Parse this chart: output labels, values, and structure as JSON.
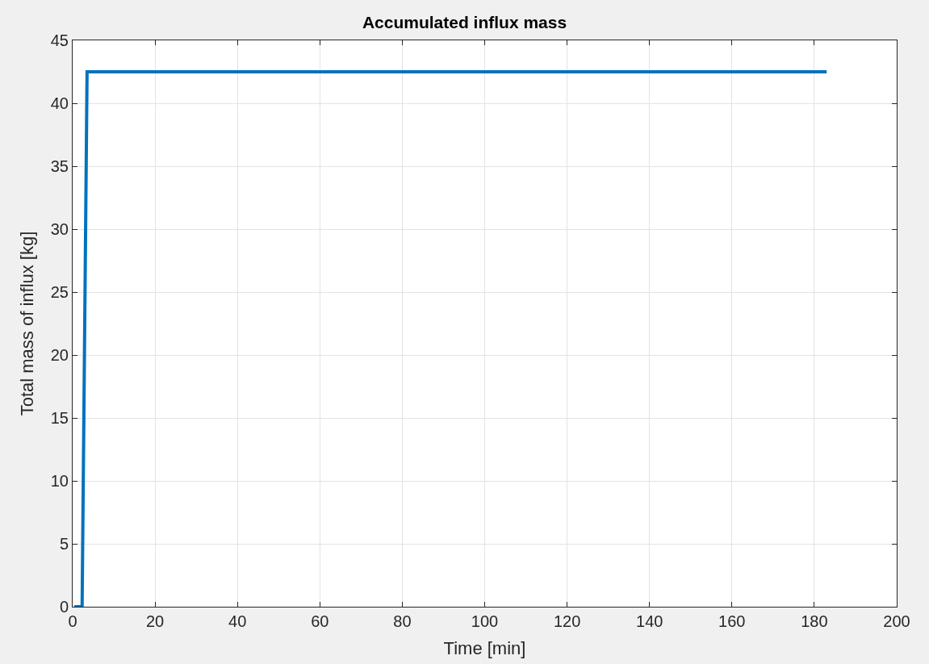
{
  "chart_data": {
    "type": "line",
    "title": "Accumulated influx mass",
    "xlabel": "Time [min]",
    "ylabel": "Total mass of influx [kg]",
    "series": [
      {
        "color": "#0072bd",
        "x": [
          0.4,
          2.3,
          3.5,
          183
        ],
        "values": [
          0,
          0,
          42.5,
          42.5
        ]
      }
    ],
    "xlim": [
      0,
      200
    ],
    "xticks": [
      0,
      20,
      40,
      60,
      80,
      100,
      120,
      140,
      160,
      180,
      200
    ],
    "ylim": [
      0,
      45
    ],
    "yticks": [
      0,
      5,
      10,
      15,
      20,
      25,
      30,
      35,
      40,
      45
    ],
    "grid": true,
    "marker": "none",
    "line_style": "solid"
  }
}
